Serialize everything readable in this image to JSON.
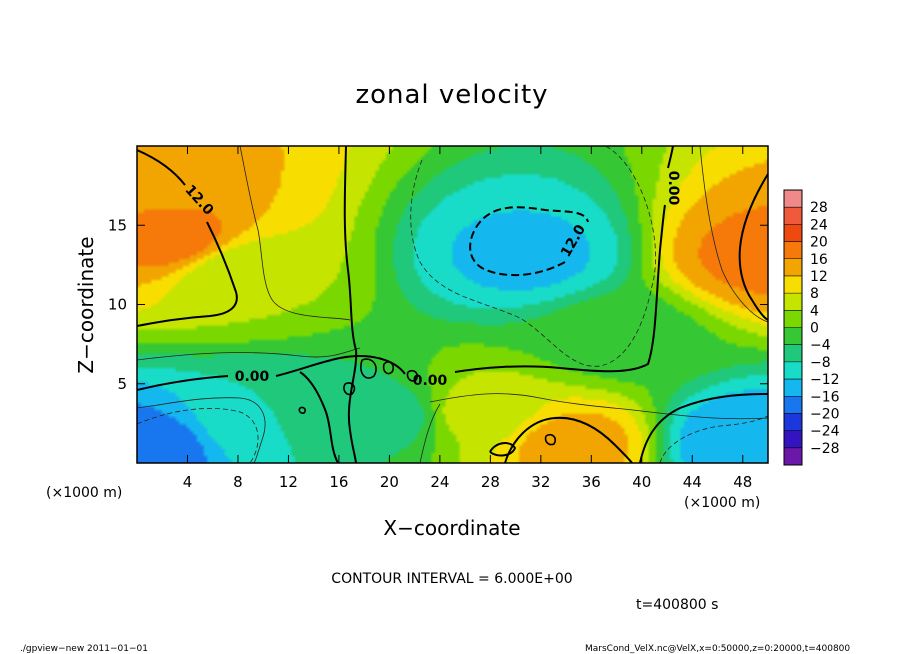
{
  "chart_data": {
    "type": "heatmap",
    "title": "zonal velocity",
    "xlabel": "X−coordinate",
    "ylabel": "Z−coordinate",
    "x_unit": "(×1000 m)",
    "y_unit": "(×1000 m)",
    "xlim": [
      0,
      50
    ],
    "ylim": [
      0,
      20
    ],
    "x_ticks": [
      "4",
      "8",
      "12",
      "16",
      "20",
      "24",
      "28",
      "32",
      "36",
      "40",
      "44",
      "48"
    ],
    "x_tick_values": [
      4,
      8,
      12,
      16,
      20,
      24,
      28,
      32,
      36,
      40,
      44,
      48
    ],
    "y_ticks": [
      "5",
      "10",
      "15"
    ],
    "y_tick_values": [
      5,
      10,
      15
    ],
    "colorbar": {
      "labels": [
        "28",
        "24",
        "20",
        "16",
        "12",
        "8",
        "4",
        "0",
        "−4",
        "−8",
        "−12",
        "−16",
        "−20",
        "−24",
        "−28"
      ],
      "levels": [
        28,
        24,
        20,
        16,
        12,
        8,
        4,
        0,
        -4,
        -8,
        -12,
        -16,
        -20,
        -24,
        -28
      ],
      "colors": [
        "#f08a8a",
        "#f05a3a",
        "#ee4a10",
        "#f57a0a",
        "#f2a500",
        "#f7de00",
        "#c5e400",
        "#7ad800",
        "#35c834",
        "#20c87c",
        "#18dcc8",
        "#14b8ee",
        "#1877ee",
        "#1c38dc",
        "#3413c0",
        "#6b17a8"
      ]
    },
    "contour_labels": [
      "12.0",
      "12.0",
      "0.00",
      "0.00",
      "0.00",
      "0.00"
    ],
    "contour_interval_text": "CONTOUR INTERVAL = 6.000E+00",
    "time_text": "t=400800 s",
    "features": [
      {
        "x": 3,
        "z": 14,
        "value": 18
      },
      {
        "x": 1,
        "z": 18.5,
        "value": 13
      },
      {
        "x": 49.5,
        "z": 13,
        "value": 17
      },
      {
        "x": 31,
        "z": 13,
        "value": -13
      },
      {
        "x": 1,
        "z": 1,
        "value": -18
      },
      {
        "x": 48,
        "z": 1.3,
        "value": -16
      },
      {
        "x": 34.5,
        "z": 1.2,
        "value": 14
      },
      {
        "x": 27,
        "z": 3.2,
        "value": 6
      },
      {
        "x": 10,
        "z": 2.6,
        "value": -8
      },
      {
        "x": 20,
        "z": 3,
        "value": -6
      },
      {
        "x": 38,
        "z": 8,
        "value": -2
      },
      {
        "x": 8,
        "z": 12,
        "value": 4
      }
    ],
    "grid": false
  },
  "footer": {
    "left": "./gpview−new   2011−01−01",
    "right": "MarsCond_VelX.nc@VelX,x=0:50000,z=0:20000,t=400800"
  }
}
